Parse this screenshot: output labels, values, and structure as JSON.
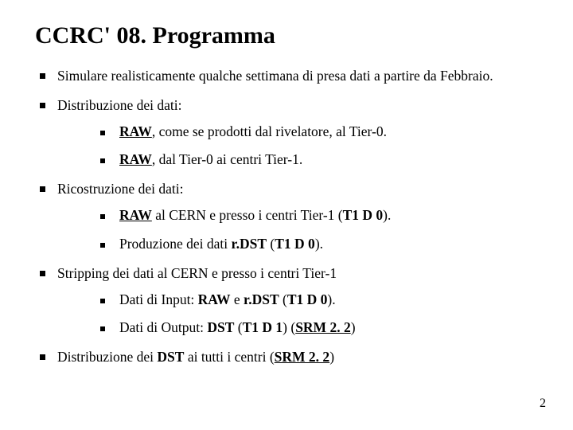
{
  "title": "CCRC' 08. Programma",
  "items": [
    {
      "html": "Simulare realisticamente qualche settimana di presa dati a partire da Febbraio."
    },
    {
      "html": "Distribuzione dei dati:",
      "children": [
        {
          "html": "<span class='b u'>RAW</span>, come se prodotti dal rivelatore, al Tier-0."
        },
        {
          "html": "<span class='b u'>RAW</span>, dal Tier-0 ai centri Tier-1."
        }
      ]
    },
    {
      "html": "Ricostruzione dei dati:",
      "children": [
        {
          "html": " <span class='b u'>RAW</span> al CERN e presso i centri Tier-1 (<span class='b'>T1 D 0</span>)."
        },
        {
          "html": "Produzione dei dati <span class='b'>r.DST</span> (<span class='b'>T1 D 0</span>)."
        }
      ]
    },
    {
      "html": "Stripping dei dati al CERN e presso i centri Tier-1",
      "children": [
        {
          "html": "Dati di Input: <span class='b'>RAW</span> e <span class='b'>r.DST</span> (<span class='b'>T1 D 0</span>)."
        },
        {
          "html": "Dati di Output: <span class='b'>DST</span> (<span class='b'>T1 D 1</span>) (<span class='b u'>SRM 2. 2</span>)"
        }
      ]
    },
    {
      "html": "Distribuzione dei <span class='b'>DST</span> ai tutti i centri (<span class='b u'>SRM 2. 2</span>)"
    }
  ],
  "page_number": "2",
  "colors": {
    "background": "#ffffff",
    "text": "#000000",
    "bullet": "#000000"
  },
  "typography": {
    "title_font": "Georgia serif",
    "title_size_pt": 30,
    "body_font": "Comic Sans MS",
    "body_size_pt": 17.5
  }
}
